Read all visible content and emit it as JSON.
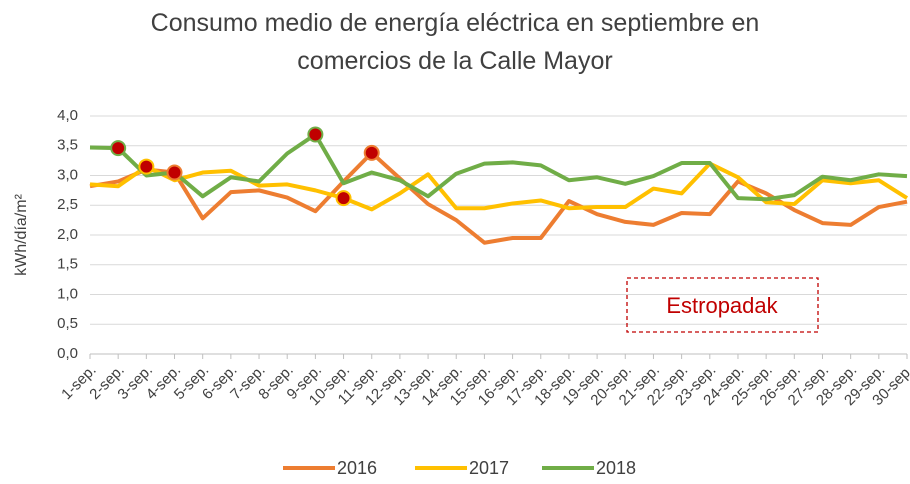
{
  "chart_data": {
    "type": "line",
    "title": "Consumo medio de energía eléctrica en septiembre en comercios de la Calle Mayor",
    "y_label": "kWh/día/m²",
    "categories": [
      "1-sep.",
      "2-sep.",
      "3-sep.",
      "4-sep.",
      "5-sep.",
      "6-sep.",
      "7-sep.",
      "8-sep.",
      "9-sep.",
      "10-sep.",
      "11-sep.",
      "12-sep.",
      "13-sep.",
      "14-sep.",
      "15-sep.",
      "16-sep.",
      "17-sep.",
      "18-sep.",
      "19-sep.",
      "20-sep.",
      "21-sep.",
      "22-sep.",
      "23-sep.",
      "24-sep.",
      "25-sep.",
      "26-sep.",
      "27-sep.",
      "28-sep.",
      "29-sep.",
      "30-sep."
    ],
    "series": [
      {
        "name": "2016",
        "color": "#ed7d31",
        "highlighted": [
          "4-sep.",
          "11-sep."
        ],
        "values": [
          2.82,
          2.9,
          3.1,
          3.05,
          2.28,
          2.72,
          2.75,
          2.63,
          2.4,
          2.9,
          3.38,
          2.95,
          2.52,
          2.25,
          1.87,
          1.95,
          1.95,
          2.57,
          2.35,
          2.22,
          2.17,
          2.37,
          2.35,
          2.9,
          2.7,
          2.42,
          2.2,
          2.17,
          2.47,
          2.56
        ]
      },
      {
        "name": "2017",
        "color": "#ffc000",
        "highlighted": [
          "3-sep.",
          "10-sep."
        ],
        "values": [
          2.85,
          2.82,
          3.15,
          2.92,
          3.05,
          3.08,
          2.83,
          2.85,
          2.75,
          2.62,
          2.43,
          2.7,
          3.02,
          2.45,
          2.45,
          2.53,
          2.58,
          2.45,
          2.47,
          2.47,
          2.78,
          2.7,
          3.2,
          2.97,
          2.55,
          2.52,
          2.92,
          2.87,
          2.92,
          2.62
        ]
      },
      {
        "name": "2018",
        "color": "#70ad47",
        "highlighted": [
          "2-sep.",
          "9-sep."
        ],
        "values": [
          3.47,
          3.46,
          3.0,
          3.05,
          2.65,
          2.97,
          2.9,
          3.37,
          3.69,
          2.87,
          3.05,
          2.92,
          2.65,
          3.03,
          3.2,
          3.22,
          3.17,
          2.92,
          2.97,
          2.86,
          2.99,
          3.21,
          3.21,
          2.62,
          2.6,
          2.67,
          2.98,
          2.92,
          3.02,
          2.99
        ]
      }
    ],
    "highlight_color": "#c00000",
    "ylim": [
      0,
      4
    ],
    "yticks": [
      {
        "value": 0,
        "label": "0,0"
      },
      {
        "value": 0.5,
        "label": "0,5"
      },
      {
        "value": 1,
        "label": "1,0"
      },
      {
        "value": 1.5,
        "label": "1,5"
      },
      {
        "value": 2,
        "label": "2,0"
      },
      {
        "value": 2.5,
        "label": "2,5"
      },
      {
        "value": 3,
        "label": "3,0"
      },
      {
        "value": 3.5,
        "label": "3,5"
      },
      {
        "value": 4,
        "label": "4,0"
      }
    ],
    "grid": true,
    "legend": "bottom",
    "annotation": {
      "text": "Estropadak",
      "color": "#c00000"
    }
  }
}
